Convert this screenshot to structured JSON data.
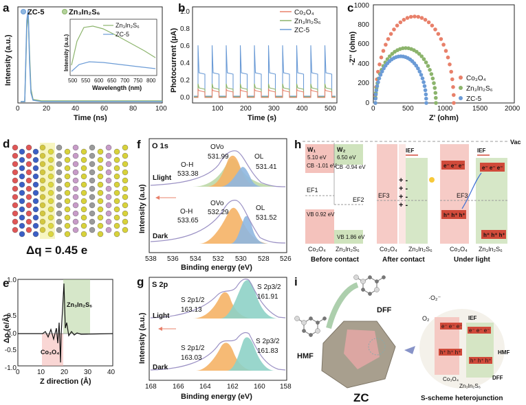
{
  "panels": {
    "a": {
      "label": "a",
      "xlabel": "Time (ns)",
      "ylabel": "Intensity (a.u.)",
      "xticks": [
        "0",
        "20",
        "40",
        "60",
        "80",
        "100"
      ],
      "legend": [
        "ZC-5",
        "Zn₃In₂S₆"
      ],
      "inset": {
        "xlabel": "Wavelength (nm)",
        "ylabel": "Intensity (a.u.)",
        "xticks": [
          "500",
          "550",
          "600",
          "650",
          "700",
          "750",
          "800"
        ],
        "legend": [
          "Zn₃In₂S₆",
          "ZC-5"
        ]
      }
    },
    "b": {
      "label": "b",
      "xlabel": "Time (s)",
      "ylabel": "Photocurrent (μA)",
      "xticks": [
        "100",
        "200",
        "300",
        "400",
        "500"
      ],
      "yticks": [
        "0.0",
        "0.2",
        "0.4",
        "0.6",
        "0.8",
        "1.0"
      ],
      "legend": [
        "Co₃O₄",
        "Zn₃In₂S₆",
        "ZC-5"
      ]
    },
    "c": {
      "label": "c",
      "xlabel": "Z' (ohm)",
      "ylabel": "-Z'' (ohm)",
      "xticks": [
        "0",
        "500",
        "1000",
        "1500",
        "2000"
      ],
      "yticks": [
        "0",
        "200",
        "400",
        "600",
        "800",
        "1000"
      ],
      "legend": [
        "Co₃O₄",
        "Zn₃In₂S₆",
        "ZC-5"
      ]
    },
    "d": {
      "label": "d",
      "caption": "Δq = 0.45 e"
    },
    "e": {
      "label": "e",
      "xlabel": "Z direction (Å)",
      "ylabel": "Δρ (e/Å)",
      "xticks": [
        "0",
        "10",
        "20",
        "30",
        "40"
      ],
      "yticks": [
        "-1.0",
        "-0.5",
        "0.0",
        "0.5",
        "1.0"
      ],
      "tag_top": "Zn₃In₂S₆",
      "tag_bottom": "Co₃O₄"
    },
    "f": {
      "label": "f",
      "title": "O 1s",
      "xlabel": "Binding energy (eV)",
      "ylabel": "Intensity (a.u)",
      "xticks": [
        "538",
        "536",
        "534",
        "532",
        "530",
        "528",
        "526"
      ],
      "light": "Llight",
      "dark": "Dark",
      "light_peaks": {
        "ov_label": "OVo",
        "ov": "531.99",
        "oh_label": "O-H",
        "oh": "533.38",
        "ol_label": "OL",
        "ol": "531.41"
      },
      "dark_peaks": {
        "ov_label": "OVo",
        "ov": "532.29",
        "oh_label": "O-H",
        "oh": "533.65",
        "ol_label": "OL",
        "ol": "531.52"
      }
    },
    "g": {
      "label": "g",
      "title": "S 2p",
      "xlabel": "Binding energy (eV)",
      "ylabel": "Intensity (a.u.)",
      "xticks": [
        "168",
        "166",
        "164",
        "162",
        "160",
        "158"
      ],
      "light": "Light",
      "dark": "Dark",
      "light_peaks": {
        "p12_label": "S 2p1/2",
        "p12": "163.13",
        "p32_label": "S 2p3/2",
        "p32": "161.91"
      },
      "dark_peaks": {
        "p12_label": "S 2p1/2",
        "p12": "163.03",
        "p32_label": "S 2p3/2",
        "p32": "161.83"
      }
    },
    "h": {
      "label": "h",
      "vac": "Vac",
      "w1": "W₁",
      "w1_val": "5.10 eV",
      "w2": "W₂",
      "w2_val": "6.50 eV",
      "cb1": "CB -1.01 eV",
      "cb2": "CB -0.94 eV",
      "vb1": "VB 0.92 eV",
      "vb2": "VB 1.86 eV",
      "ef1": "EF1",
      "ef2": "EF2",
      "ef3": "EF3",
      "ief": "IEF",
      "elec": "e⁻ e⁻ e⁻",
      "holes": "h⁺ h⁺ h⁺",
      "co": "Co₃O₄",
      "zn": "Zn₃In₂S₆",
      "captions": [
        "Before contact",
        "After contact",
        "Under light"
      ]
    },
    "i": {
      "label": "i",
      "hmf": "HMF",
      "dff": "DFF",
      "zc": "ZC",
      "o2": "O₂",
      "o2rad": "·O₂⁻",
      "ief": "IEF",
      "elec": "e⁻ e⁻ e⁻",
      "holes": "h⁺ h⁺ h⁺",
      "co": "Co₃O₄",
      "zn": "Zn₃In₂S₆",
      "caption": "S-scheme heterojunction"
    }
  },
  "colors": {
    "co": "#e8806a",
    "zn": "#8cb46c",
    "zc": "#6b9bd6",
    "orange": "#f5b266",
    "teal": "#8ed1c6",
    "blue_fill": "#8fb7e0",
    "green_fill": "#b4d39c",
    "caption": "#7a96c8"
  }
}
